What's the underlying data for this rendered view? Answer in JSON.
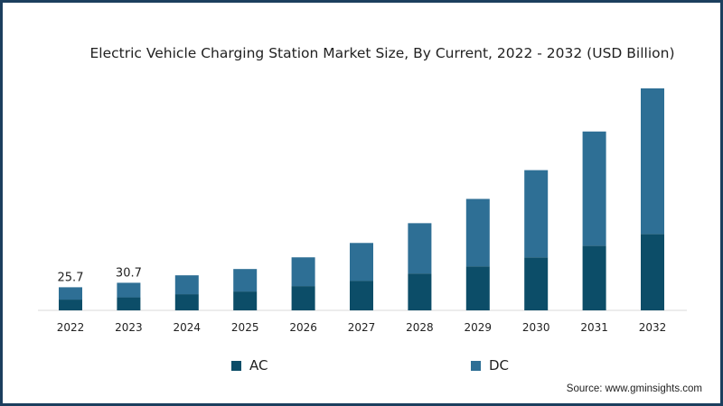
{
  "chart_data": {
    "type": "bar",
    "stacked": true,
    "title": "Electric Vehicle Charging Station Market Size, By Current, 2022 - 2032 (USD Billion)",
    "categories": [
      "2022",
      "2023",
      "2024",
      "2025",
      "2026",
      "2027",
      "2028",
      "2029",
      "2030",
      "2031",
      "2032"
    ],
    "series": [
      {
        "name": "AC",
        "color": "#0c4d68",
        "values": [
          12,
          14.5,
          18,
          21,
          27,
          33,
          41,
          49,
          59,
          72,
          85
        ]
      },
      {
        "name": "DC",
        "color": "#2e6f95",
        "values": [
          13.7,
          16.2,
          21,
          25,
          32,
          42,
          56,
          75,
          97,
          127,
          162
        ]
      }
    ],
    "data_labels": [
      {
        "category": "2022",
        "text": "25.7"
      },
      {
        "category": "2023",
        "text": "30.7"
      }
    ],
    "ylim": [
      0,
      265
    ],
    "grid": false,
    "legend_position": "bottom"
  },
  "source_text": "Source: www.gminsights.com"
}
